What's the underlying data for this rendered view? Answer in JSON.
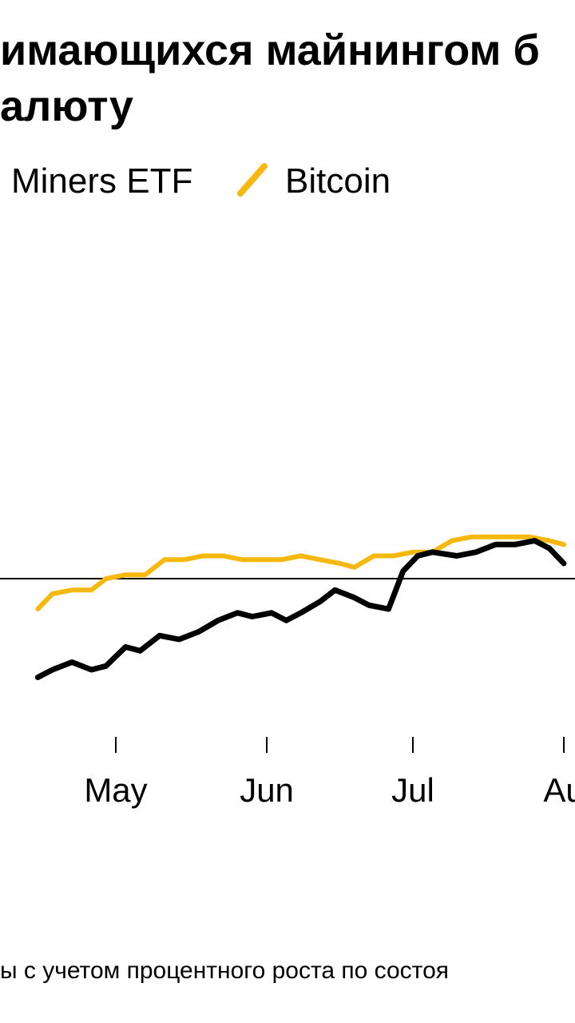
{
  "title_lines": [
    "имающихся майнингом б",
    "алюту"
  ],
  "footnote": "ы с учетом процентного роста по состоя",
  "colors": {
    "etf": "#000000",
    "btc": "#F5B80E",
    "baseline": "#000000"
  },
  "chart_data": {
    "type": "line",
    "legend": [
      {
        "name": "Miners ETF",
        "color": "#000000",
        "icon": "slash-line-icon"
      },
      {
        "name": "Bitcoin",
        "color": "#F5B80E",
        "icon": "slash-line-icon"
      }
    ],
    "x_ticks": [
      "May",
      "Jun",
      "Jul",
      "Aug"
    ],
    "x_tick_labels_visible": [
      "May",
      "Jun",
      "Jul",
      "Au"
    ],
    "baseline": 0,
    "grid": false,
    "series": [
      {
        "name": "Miners ETF",
        "points": [
          [
            "Apr 15",
            -13
          ],
          [
            "Apr 18",
            -12
          ],
          [
            "Apr 22",
            -11
          ],
          [
            "Apr 26",
            -12
          ],
          [
            "Apr 29",
            -11.5
          ],
          [
            "May 3",
            -9
          ],
          [
            "May 6",
            -9.5
          ],
          [
            "May 10",
            -7.5
          ],
          [
            "May 14",
            -8
          ],
          [
            "May 18",
            -7
          ],
          [
            "May 22",
            -5.5
          ],
          [
            "May 26",
            -4.5
          ],
          [
            "May 29",
            -5
          ],
          [
            "Jun 2",
            -4.5
          ],
          [
            "Jun 5",
            -5.5
          ],
          [
            "Jun 8",
            -4.5
          ],
          [
            "Jun 12",
            -3
          ],
          [
            "Jun 15",
            -1.5
          ],
          [
            "Jun 19",
            -2.5
          ],
          [
            "Jun 22",
            -3.5
          ],
          [
            "Jun 26",
            -4
          ],
          [
            "Jun 29",
            1
          ],
          [
            "Jul 2",
            3
          ],
          [
            "Jul 5",
            3.5
          ],
          [
            "Jul 10",
            3
          ],
          [
            "Jul 14",
            3.5
          ],
          [
            "Jul 18",
            4.5
          ],
          [
            "Jul 22",
            4.5
          ],
          [
            "Jul 26",
            5
          ],
          [
            "Jul 29",
            4
          ],
          [
            "Aug 1",
            2
          ]
        ]
      },
      {
        "name": "Bitcoin",
        "points": [
          [
            "Apr 15",
            -4
          ],
          [
            "Apr 18",
            -2
          ],
          [
            "Apr 22",
            -1.5
          ],
          [
            "Apr 26",
            -1.5
          ],
          [
            "Apr 29",
            0
          ],
          [
            "May 3",
            0.5
          ],
          [
            "May 7",
            0.5
          ],
          [
            "May 11",
            2.5
          ],
          [
            "May 15",
            2.5
          ],
          [
            "May 19",
            3
          ],
          [
            "May 23",
            3
          ],
          [
            "May 27",
            2.5
          ],
          [
            "May 31",
            2.5
          ],
          [
            "Jun 4",
            2.5
          ],
          [
            "Jun 8",
            3
          ],
          [
            "Jun 12",
            2.5
          ],
          [
            "Jun 16",
            2
          ],
          [
            "Jun 19",
            1.5
          ],
          [
            "Jun 23",
            3
          ],
          [
            "Jun 27",
            3
          ],
          [
            "Jul 1",
            3.5
          ],
          [
            "Jul 5",
            3.5
          ],
          [
            "Jul 9",
            5
          ],
          [
            "Jul 13",
            5.5
          ],
          [
            "Jul 17",
            5.5
          ],
          [
            "Jul 21",
            5.5
          ],
          [
            "Jul 25",
            5.5
          ],
          [
            "Jul 29",
            5
          ],
          [
            "Aug 1",
            4.5
          ]
        ]
      }
    ]
  }
}
